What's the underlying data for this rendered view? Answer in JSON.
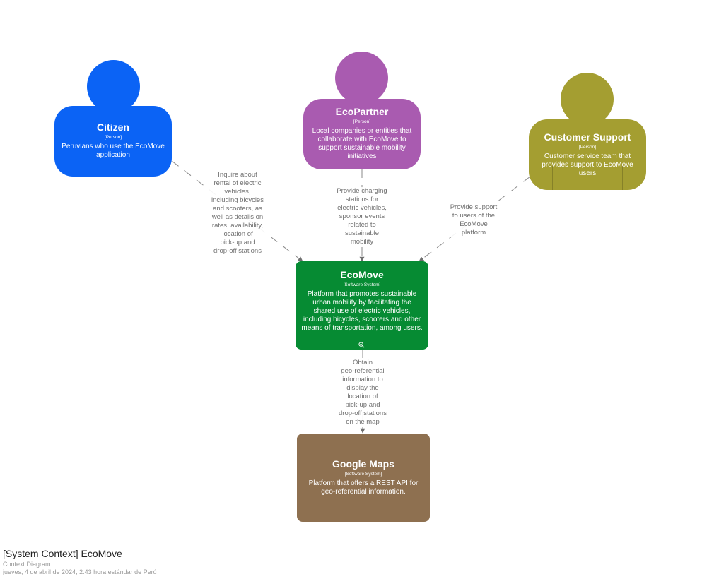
{
  "colors": {
    "citizen": "#0b63f5",
    "partner": "#a95bb0",
    "support": "#a49e31",
    "ecomove": "#068b33",
    "google": "#8e7050",
    "edge": "#707070"
  },
  "nodes": {
    "citizen": {
      "title": "Citizen",
      "type": "[Person]",
      "description": "Peruvians who use the EcoMove application"
    },
    "ecopartner": {
      "title": "EcoPartner",
      "type": "[Person]",
      "description": "Local companies or entities that collaborate with EcoMove to support sustainable mobility initiatives"
    },
    "support": {
      "title": "Customer Support",
      "type": "[Person]",
      "description": "Customer service team that provides support to EcoMove users"
    },
    "ecomove": {
      "title": "EcoMove",
      "type": "[Software System]",
      "description": "Platform that promotes sustainable urban mobility by facilitating the shared use of electric vehicles, including bicycles, scooters and other means of transportation, among users."
    },
    "google": {
      "title": "Google Maps",
      "type": "[Software System]",
      "description": "Platform that offers a REST API for geo-referential information."
    }
  },
  "edges": {
    "citizen_ecomove": "Inquire about\nrental of electric\nvehicles,\nincluding bicycles\nand scooters, as\nwell as details on\nrates, availability,\nlocation of\npick-up and\ndrop-off stations",
    "partner_ecomove": "Provide charging\nstations for\nelectric vehicles,\nsponsor events\nrelated to\nsustainable\nmobility",
    "support_ecomove": "Provide support\nto users of the\nEcoMove\nplatform",
    "ecomove_google": "Obtain\ngeo-referential\ninformation to\ndisplay the\nlocation of\npick-up and\ndrop-off stations\non the map"
  },
  "footer": {
    "title": "[System Context] EcoMove",
    "subtitle": "Context Diagram",
    "timestamp": "jueves, 4 de abril de 2024, 2:43 hora estándar de Perú"
  },
  "icons": {
    "zoom": "zoom-in-icon"
  }
}
